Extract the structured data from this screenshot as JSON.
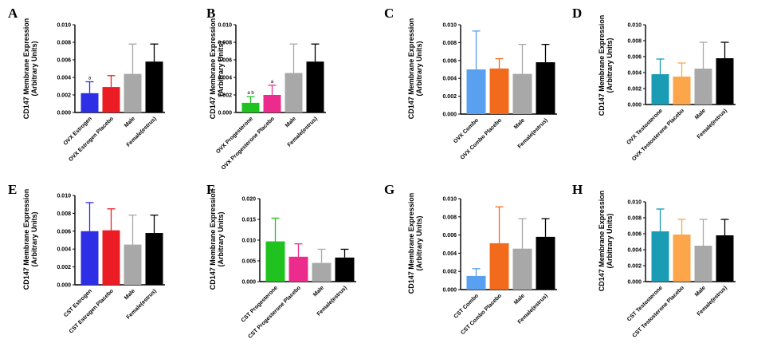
{
  "chart_data": [
    {
      "letter": "A",
      "type": "bar",
      "ylabel": [
        "CD147 Membrane Expression",
        "(Arbitrary Units)"
      ],
      "ylim": [
        0,
        0.01
      ],
      "yticks": [
        "0.000",
        "0.002",
        "0.004",
        "0.006",
        "0.008",
        "0.010"
      ],
      "categories": [
        "OVX Estrogen",
        "OVX Estrogen Placebo",
        "Male",
        "Female(estrus)"
      ],
      "values": [
        0.0022,
        0.0029,
        0.0044,
        0.0058
      ],
      "errors": [
        0.0013,
        0.0013,
        0.0034,
        0.002
      ],
      "colors": [
        "#2e2ee6",
        "#ec1c24",
        "#a8a8a8",
        "#000000"
      ],
      "annotations": [
        "a",
        "",
        "",
        ""
      ]
    },
    {
      "letter": "B",
      "type": "bar",
      "ylabel": [
        "CD147 Membrane Expression",
        "(Arbitrary Units)"
      ],
      "ylim": [
        0,
        0.01
      ],
      "yticks": [
        "0.000",
        "0.002",
        "0.004",
        "0.006",
        "0.008",
        "0.010"
      ],
      "categories": [
        "OVX Progesterone",
        "OVX Progesterone Placebo",
        "Male",
        "Female(estrus)"
      ],
      "values": [
        0.0011,
        0.002,
        0.0045,
        0.0058
      ],
      "errors": [
        0.0007,
        0.0011,
        0.0033,
        0.002
      ],
      "colors": [
        "#1fc21f",
        "#ec2c8c",
        "#a8a8a8",
        "#000000"
      ],
      "annotations": [
        "a b",
        "a",
        "",
        ""
      ]
    },
    {
      "letter": "C",
      "type": "bar",
      "ylabel": [
        "CD147 Membrane Expression",
        "(Arbitrary Units)"
      ],
      "ylim": [
        0,
        0.01
      ],
      "yticks": [
        "0.000",
        "0.002",
        "0.004",
        "0.006",
        "0.008",
        "0.010"
      ],
      "categories": [
        "OVX Combo",
        "OVX Combo Placebo",
        "Male",
        "Female(estrus)"
      ],
      "values": [
        0.005,
        0.0051,
        0.0045,
        0.0058
      ],
      "errors": [
        0.0043,
        0.0011,
        0.0033,
        0.002
      ],
      "colors": [
        "#5aa0f0",
        "#f26b1d",
        "#a8a8a8",
        "#000000"
      ],
      "annotations": [
        "",
        "",
        "",
        ""
      ]
    },
    {
      "letter": "D",
      "type": "bar",
      "ylabel": [
        "CD147 Membrane Expression",
        "(Arbitrary Units)"
      ],
      "ylim": [
        0,
        0.01
      ],
      "yticks": [
        "0.000",
        "0.002",
        "0.004",
        "0.006",
        "0.008",
        "0.010"
      ],
      "categories": [
        "OVX Testosterone",
        "OVX Testosterone Placebo",
        "Male",
        "Female(estrus)"
      ],
      "values": [
        0.0038,
        0.0035,
        0.0045,
        0.0058
      ],
      "errors": [
        0.0019,
        0.0017,
        0.0033,
        0.002
      ],
      "colors": [
        "#1a9cb4",
        "#fca54a",
        "#a8a8a8",
        "#000000"
      ],
      "annotations": [
        "",
        "",
        "",
        ""
      ]
    },
    {
      "letter": "E",
      "type": "bar",
      "ylabel": [
        "CD147 Membrane Expression",
        "(Arbitrary Units)"
      ],
      "ylim": [
        0,
        0.01
      ],
      "yticks": [
        "0.000",
        "0.002",
        "0.004",
        "0.006",
        "0.008",
        "0.010"
      ],
      "categories": [
        "CST Estrogen",
        "CST Estrogen Placebo",
        "Male",
        "Female(estrus)"
      ],
      "values": [
        0.006,
        0.0061,
        0.0045,
        0.0058
      ],
      "errors": [
        0.0032,
        0.0024,
        0.0033,
        0.002
      ],
      "colors": [
        "#2e2ee6",
        "#ec1c24",
        "#a8a8a8",
        "#000000"
      ],
      "annotations": [
        "",
        "",
        "",
        ""
      ]
    },
    {
      "letter": "F",
      "type": "bar",
      "ylabel": [
        "CD147 Membrane Expression",
        "(Arbitrary Units)"
      ],
      "ylim": [
        0,
        0.02
      ],
      "yticks": [
        "0.000",
        "0.005",
        "0.010",
        "0.015",
        "0.020"
      ],
      "categories": [
        "CST Progesterone",
        "CST Progesterone Placebo",
        "Male",
        "Female(estrus)"
      ],
      "values": [
        0.0097,
        0.006,
        0.0045,
        0.0058
      ],
      "errors": [
        0.0056,
        0.0031,
        0.0033,
        0.002
      ],
      "colors": [
        "#1fc21f",
        "#ec2c8c",
        "#a8a8a8",
        "#000000"
      ],
      "annotations": [
        "",
        "",
        "",
        ""
      ]
    },
    {
      "letter": "G",
      "type": "bar",
      "ylabel": [
        "CD147 Membrane Expression",
        "(Arbitrary Units)"
      ],
      "ylim": [
        0,
        0.01
      ],
      "yticks": [
        "0.000",
        "0.002",
        "0.004",
        "0.006",
        "0.008",
        "0.010"
      ],
      "categories": [
        "CST Combo",
        "CST Combo Placebo",
        "Male",
        "Female(estrus)"
      ],
      "values": [
        0.0015,
        0.0051,
        0.0045,
        0.0058
      ],
      "errors": [
        0.0008,
        0.004,
        0.0033,
        0.002
      ],
      "colors": [
        "#5aa0f0",
        "#f26b1d",
        "#a8a8a8",
        "#000000"
      ],
      "annotations": [
        "",
        "",
        "",
        ""
      ]
    },
    {
      "letter": "H",
      "type": "bar",
      "ylabel": [
        "CD147 Membrane Expression",
        "(Arbitrary Units)"
      ],
      "ylim": [
        0,
        0.01
      ],
      "yticks": [
        "0.000",
        "0.002",
        "0.004",
        "0.006",
        "0.008",
        "0.010"
      ],
      "categories": [
        "CST Testosterone",
        "CST Testosterone Placebo",
        "Male",
        "Female(estrus)"
      ],
      "values": [
        0.0063,
        0.0059,
        0.0045,
        0.0058
      ],
      "errors": [
        0.0028,
        0.0019,
        0.0033,
        0.002
      ],
      "colors": [
        "#1a9cb4",
        "#fca54a",
        "#a8a8a8",
        "#000000"
      ],
      "annotations": [
        "",
        "",
        "",
        ""
      ]
    }
  ]
}
